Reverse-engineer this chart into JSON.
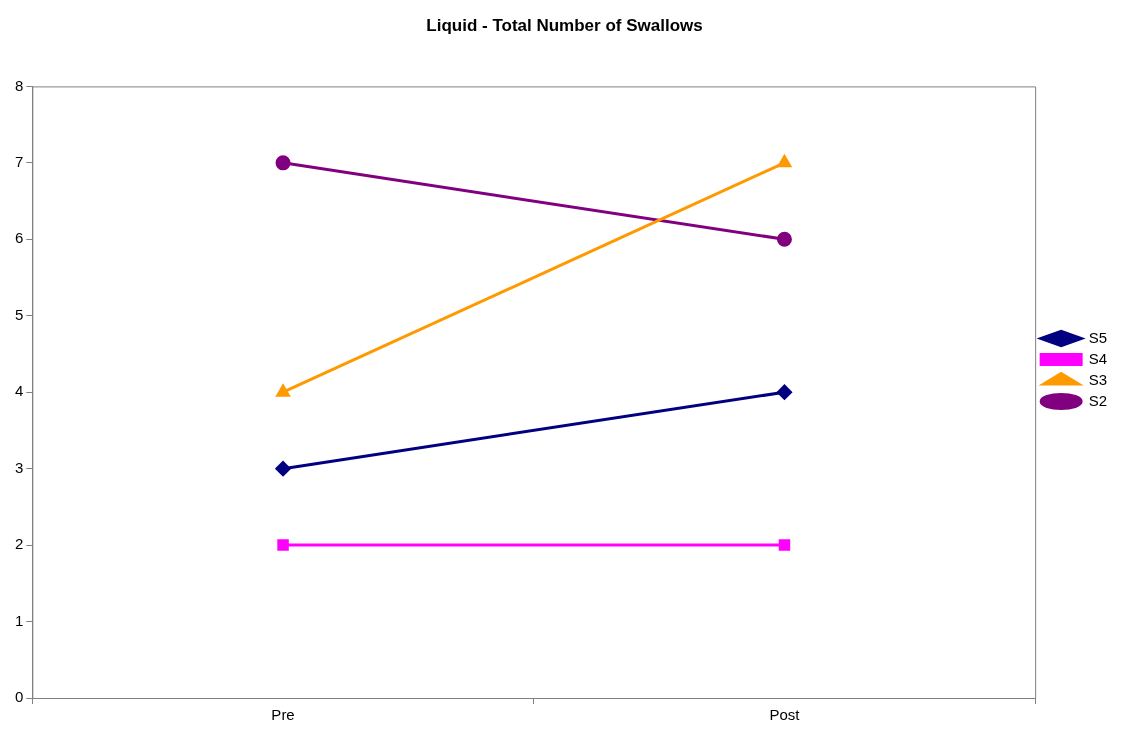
{
  "chart_data": {
    "type": "line",
    "title": "Liquid - Total Number of Swallows",
    "categories": [
      "Pre",
      "Post"
    ],
    "series": [
      {
        "name": "S5",
        "color": "#000080",
        "values": [
          3,
          4
        ],
        "marker": "diamond"
      },
      {
        "name": "S4",
        "color": "#ff00ff",
        "values": [
          2,
          2
        ],
        "marker": "square"
      },
      {
        "name": "S3",
        "color": "#ff9900",
        "values": [
          4,
          7
        ],
        "marker": "triangle"
      },
      {
        "name": "S2",
        "color": "#800080",
        "values": [
          7,
          6
        ],
        "marker": "circle"
      }
    ],
    "ylim": [
      0,
      8
    ],
    "yticks": [
      0,
      1,
      2,
      3,
      4,
      5,
      6,
      7,
      8
    ],
    "grid": false,
    "legend": "right",
    "line_style": "solid"
  }
}
